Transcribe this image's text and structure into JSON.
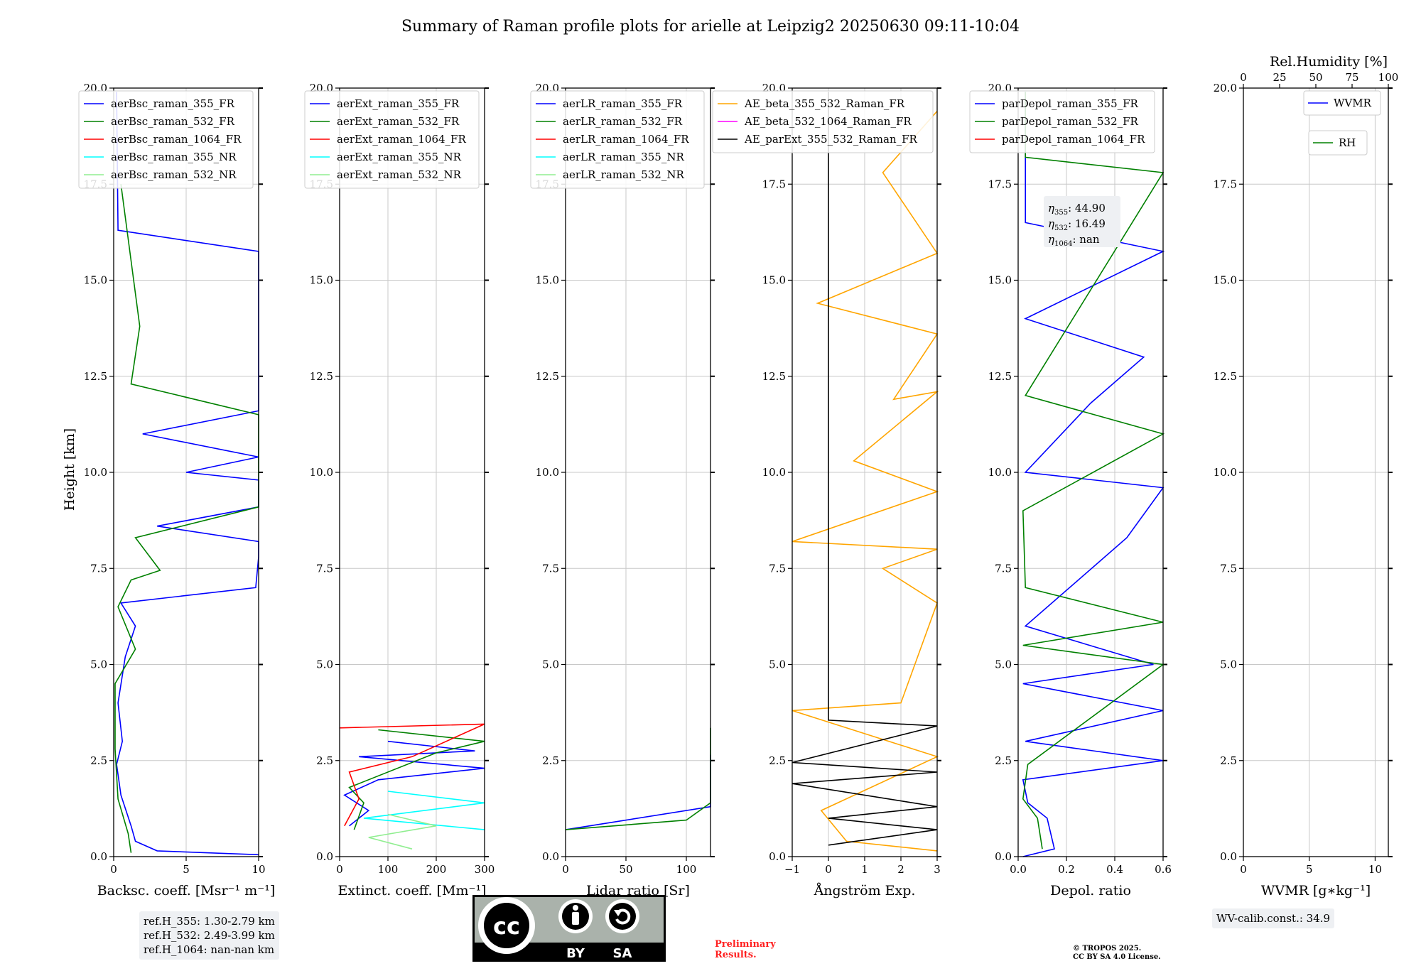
{
  "figure": {
    "title": "Summary of Raman profile plots for arielle at Leipzig2 20250630 09:11-10:04",
    "ylabel": "Height [km]"
  },
  "chart_data": [
    {
      "type": "line",
      "id": "bsc",
      "xlabel": "Backsc. coeff. [Msr⁻¹ m⁻¹]",
      "xlim": [
        0,
        10
      ],
      "xticks": [
        "0",
        "5",
        "10"
      ],
      "ylim": [
        0,
        20
      ],
      "legend": [
        "aerBsc_raman_355_FR",
        "aerBsc_raman_532_FR",
        "aerBsc_raman_1064_FR",
        "aerBsc_raman_355_NR",
        "aerBsc_raman_532_NR"
      ],
      "colors": [
        "#0000ff",
        "#008000",
        "#ff0000",
        "#00ffff",
        "#90ee90"
      ],
      "series": [
        {
          "name": "aerBsc_raman_355_FR",
          "points": [
            [
              10,
              0.05
            ],
            [
              3,
              0.15
            ],
            [
              1.5,
              0.4
            ],
            [
              1.2,
              0.8
            ],
            [
              0.5,
              1.6
            ],
            [
              0.2,
              2.4
            ],
            [
              0.6,
              3.0
            ],
            [
              0.3,
              4.0
            ],
            [
              0.8,
              5.2
            ],
            [
              1.5,
              6.0
            ],
            [
              0.5,
              6.6
            ],
            [
              9.8,
              7.0
            ],
            [
              10,
              7.8
            ],
            [
              10,
              8.2
            ],
            [
              3,
              8.6
            ],
            [
              10,
              9.1
            ],
            [
              10,
              9.8
            ],
            [
              5,
              10.0
            ],
            [
              10,
              10.4
            ],
            [
              2,
              11.0
            ],
            [
              10,
              11.6
            ],
            [
              10,
              12.3
            ],
            [
              10,
              13.0
            ],
            [
              10,
              13.4
            ],
            [
              10,
              14.6
            ],
            [
              10,
              15.75
            ],
            [
              0.3,
              16.3
            ],
            [
              0.2,
              19.9
            ]
          ]
        },
        {
          "name": "aerBsc_raman_532_FR",
          "points": [
            [
              1.2,
              0.1
            ],
            [
              1.0,
              0.6
            ],
            [
              0.3,
              1.5
            ],
            [
              0.1,
              2.8
            ],
            [
              0.1,
              4.5
            ],
            [
              1.5,
              5.4
            ],
            [
              0.3,
              6.5
            ],
            [
              1.2,
              7.2
            ],
            [
              3.2,
              7.45
            ],
            [
              1.5,
              8.3
            ],
            [
              10,
              9.1
            ],
            [
              10,
              10.0
            ],
            [
              10,
              11.5
            ],
            [
              1.2,
              12.3
            ],
            [
              1.8,
              13.8
            ],
            [
              0.5,
              17.5
            ]
          ]
        }
      ]
    },
    {
      "type": "line",
      "id": "ext",
      "xlabel": "Extinct. coeff. [Mm⁻¹]",
      "xlim": [
        0,
        300
      ],
      "xticks": [
        "0",
        "100",
        "200",
        "300"
      ],
      "ylim": [
        0,
        20
      ],
      "legend": [
        "aerExt_raman_355_FR",
        "aerExt_raman_532_FR",
        "aerExt_raman_1064_FR",
        "aerExt_raman_355_NR",
        "aerExt_raman_532_NR"
      ],
      "colors": [
        "#0000ff",
        "#008000",
        "#ff0000",
        "#00ffff",
        "#90ee90"
      ],
      "series": [
        {
          "name": "aerExt_raman_355_FR",
          "points": [
            [
              20,
              0.8
            ],
            [
              60,
              1.2
            ],
            [
              10,
              1.6
            ],
            [
              80,
              2.0
            ],
            [
              300,
              2.3
            ],
            [
              40,
              2.6
            ],
            [
              280,
              2.75
            ],
            [
              100,
              3.0
            ]
          ]
        },
        {
          "name": "aerExt_raman_532_FR",
          "points": [
            [
              30,
              0.7
            ],
            [
              50,
              1.4
            ],
            [
              20,
              1.8
            ],
            [
              200,
              2.7
            ],
            [
              300,
              3.0
            ],
            [
              80,
              3.3
            ]
          ]
        },
        {
          "name": "aerExt_raman_1064_FR",
          "points": [
            [
              10,
              0.8
            ],
            [
              40,
              1.5
            ],
            [
              20,
              2.2
            ],
            [
              150,
              2.6
            ],
            [
              300,
              3.45
            ],
            [
              0,
              3.35
            ]
          ]
        },
        {
          "name": "aerExt_raman_355_NR",
          "points": [
            [
              300,
              0.7
            ],
            [
              50,
              1.0
            ],
            [
              300,
              1.4
            ],
            [
              100,
              1.7
            ]
          ]
        },
        {
          "name": "aerExt_raman_532_NR",
          "points": [
            [
              150,
              0.2
            ],
            [
              60,
              0.5
            ],
            [
              200,
              0.8
            ],
            [
              100,
              1.1
            ]
          ]
        }
      ]
    },
    {
      "type": "line",
      "id": "lr",
      "xlabel": "Lidar ratio [Sr]",
      "xlim": [
        0,
        120
      ],
      "xticks": [
        "0",
        "50",
        "100"
      ],
      "ylim": [
        0,
        20
      ],
      "legend": [
        "aerLR_raman_355_FR",
        "aerLR_raman_532_FR",
        "aerLR_raman_1064_FR",
        "aerLR_raman_355_NR",
        "aerLR_raman_532_NR"
      ],
      "colors": [
        "#0000ff",
        "#008000",
        "#ff0000",
        "#00ffff",
        "#90ee90"
      ],
      "series": [
        {
          "name": "aerLR_raman_355_FR",
          "points": [
            [
              0,
              0.7
            ],
            [
              40,
              0.9
            ],
            [
              120,
              1.3
            ],
            [
              120,
              1.8
            ],
            [
              120,
              2.2
            ],
            [
              120,
              2.65
            ]
          ]
        },
        {
          "name": "aerLR_raman_532_FR",
          "points": [
            [
              0,
              0.7
            ],
            [
              100,
              0.95
            ],
            [
              120,
              1.4
            ],
            [
              120,
              2.0
            ],
            [
              120,
              2.5
            ],
            [
              120,
              3.0
            ],
            [
              120,
              3.35
            ]
          ]
        }
      ]
    },
    {
      "type": "line",
      "id": "ae",
      "xlabel": "Ångström Exp.",
      "xlim": [
        -1,
        3
      ],
      "xticks": [
        "−1",
        "0",
        "1",
        "2",
        "3"
      ],
      "ylim": [
        0,
        20
      ],
      "legend": [
        "AE_beta_355_532_Raman_FR",
        "AE_beta_532_1064_Raman_FR",
        "AE_parExt_355_532_Raman_FR"
      ],
      "colors": [
        "#ffa500",
        "#ff00ff",
        "#000000"
      ],
      "series": [
        {
          "name": "AE_beta_355_532_Raman_FR",
          "points": [
            [
              3,
              0.15
            ],
            [
              0.5,
              0.4
            ],
            [
              -0.2,
              1.2
            ],
            [
              3,
              2.6
            ],
            [
              -1,
              3.8
            ],
            [
              2,
              4.0
            ],
            [
              3,
              6.6
            ],
            [
              1.5,
              7.5
            ],
            [
              3,
              8.0
            ],
            [
              -1,
              8.2
            ],
            [
              3,
              9.5
            ],
            [
              0.7,
              10.3
            ],
            [
              3,
              12.1
            ],
            [
              1.8,
              11.9
            ],
            [
              3,
              13.6
            ],
            [
              -0.3,
              14.4
            ],
            [
              3,
              15.7
            ],
            [
              1.5,
              17.8
            ],
            [
              3,
              19.4
            ]
          ]
        },
        {
          "name": "AE_parExt_355_532_Raman_FR",
          "points": [
            [
              0,
              0.3
            ],
            [
              3,
              0.7
            ],
            [
              0,
              1.0
            ],
            [
              3,
              1.3
            ],
            [
              -1,
              1.9
            ],
            [
              3,
              2.2
            ],
            [
              -1,
              2.45
            ],
            [
              3,
              3.4
            ],
            [
              0,
              3.55
            ],
            [
              0,
              19.9
            ]
          ]
        }
      ]
    },
    {
      "type": "line",
      "id": "dep",
      "xlabel": "Depol. ratio",
      "xlim": [
        0,
        0.6
      ],
      "xticks": [
        "0.0",
        "0.2",
        "0.4",
        "0.6"
      ],
      "ylim": [
        0,
        20
      ],
      "legend": [
        "parDepol_raman_355_FR",
        "parDepol_raman_532_FR",
        "parDepol_raman_1064_FR"
      ],
      "colors": [
        "#0000ff",
        "#008000",
        "#ff0000"
      ],
      "series": [
        {
          "name": "parDepol_raman_355_FR",
          "points": [
            [
              0.02,
              0.0
            ],
            [
              0.15,
              0.2
            ],
            [
              0.12,
              1.0
            ],
            [
              0.04,
              1.4
            ],
            [
              0.02,
              2.0
            ],
            [
              0.6,
              2.5
            ],
            [
              0.03,
              3.0
            ],
            [
              0.6,
              3.8
            ],
            [
              0.02,
              4.5
            ],
            [
              0.56,
              5.0
            ],
            [
              0.03,
              6.0
            ],
            [
              0.45,
              8.3
            ],
            [
              0.6,
              9.6
            ],
            [
              0.03,
              10.0
            ],
            [
              0.3,
              11.8
            ],
            [
              0.52,
              13.0
            ],
            [
              0.03,
              14.0
            ],
            [
              0.6,
              15.75
            ],
            [
              0.03,
              16.5
            ],
            [
              0.03,
              19.9
            ]
          ]
        },
        {
          "name": "parDepol_raman_532_FR",
          "points": [
            [
              0.1,
              0.2
            ],
            [
              0.08,
              1.0
            ],
            [
              0.02,
              1.5
            ],
            [
              0.04,
              2.4
            ],
            [
              0.6,
              5.0
            ],
            [
              0.02,
              5.5
            ],
            [
              0.6,
              6.1
            ],
            [
              0.03,
              7.0
            ],
            [
              0.02,
              9.0
            ],
            [
              0.6,
              11.0
            ],
            [
              0.03,
              12.0
            ],
            [
              0.6,
              17.8
            ],
            [
              0.03,
              18.2
            ],
            [
              0.03,
              19.9
            ]
          ]
        }
      ],
      "annotations": [
        {
          "label": "η",
          "sub": "355",
          "value": ": 44.90"
        },
        {
          "label": "η",
          "sub": "532",
          "value": ": 16.49"
        },
        {
          "label": "η",
          "sub": "1064",
          "value": ": nan"
        }
      ]
    },
    {
      "type": "line",
      "id": "wv",
      "xlabel": "WVMR [g∗kg⁻¹]",
      "xlim": [
        0,
        11
      ],
      "xticks": [
        "0",
        "5",
        "10"
      ],
      "x2label": "Rel.Humidity [%]",
      "x2lim": [
        0,
        100
      ],
      "x2ticks": [
        "0",
        "25",
        "50",
        "75",
        "100"
      ],
      "ylim": [
        0,
        20
      ],
      "legend": [
        "WVMR",
        "RH"
      ],
      "colors": [
        "#0000ff",
        "#008000"
      ],
      "series": []
    }
  ],
  "yticks": [
    "0.0",
    "2.5",
    "5.0",
    "7.5",
    "10.0",
    "12.5",
    "15.0",
    "17.5",
    "20.0"
  ],
  "ref_heights": {
    "line1": "ref.H_355: 1.30-2.79 km",
    "line2": "ref.H_532: 2.49-3.99 km",
    "line3": "ref.H_1064: nan-nan km"
  },
  "wv_calib": "WV-calib.const.: 34.9",
  "license_badge": {
    "logo_text": "cc",
    "by": "BY",
    "sa": "SA"
  },
  "preliminary": {
    "line1": "Preliminary",
    "line2": "Results."
  },
  "copyright": {
    "line1": "© TROPOS 2025.",
    "line2": "CC BY SA 4.0 License."
  }
}
